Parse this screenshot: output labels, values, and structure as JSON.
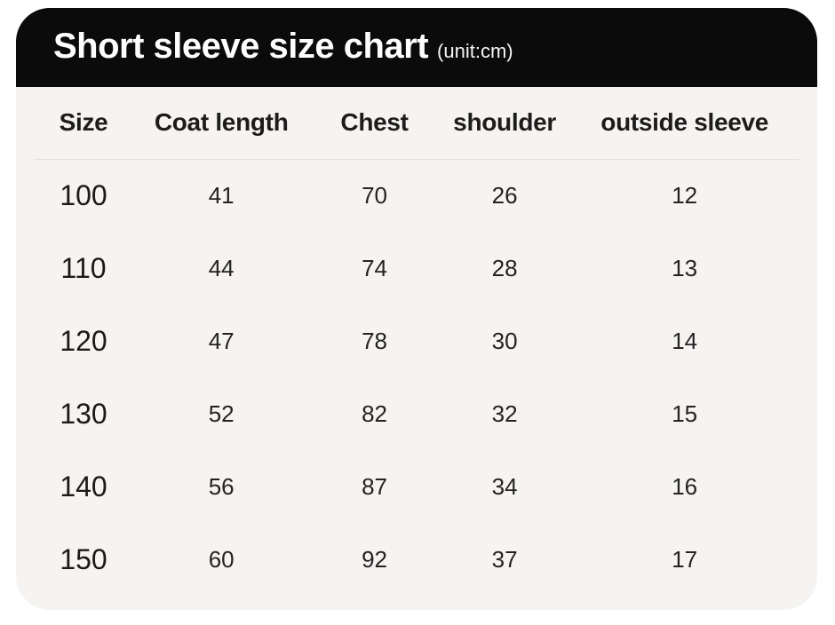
{
  "header": {
    "title": "Short sleeve size chart",
    "unit": "(unit:cm)"
  },
  "colors": {
    "header_bg": "#0c0b0b",
    "header_text": "#fdfdfd",
    "body_bg": "#f5f4f3",
    "cell_text": "#242322",
    "divider": "#e3e1df"
  },
  "chart_data": {
    "type": "table",
    "title": "Short sleeve size chart",
    "unit_label": "(unit:cm)",
    "columns": [
      "Size",
      "Coat length",
      "Chest",
      "shoulder",
      "outside sleeve"
    ],
    "rows": [
      [
        "100",
        "41",
        "70",
        "26",
        "12"
      ],
      [
        "110",
        "44",
        "74",
        "28",
        "13"
      ],
      [
        "120",
        "47",
        "78",
        "30",
        "14"
      ],
      [
        "130",
        "52",
        "82",
        "32",
        "15"
      ],
      [
        "140",
        "56",
        "87",
        "34",
        "16"
      ],
      [
        "150",
        "60",
        "92",
        "37",
        "17"
      ]
    ]
  }
}
